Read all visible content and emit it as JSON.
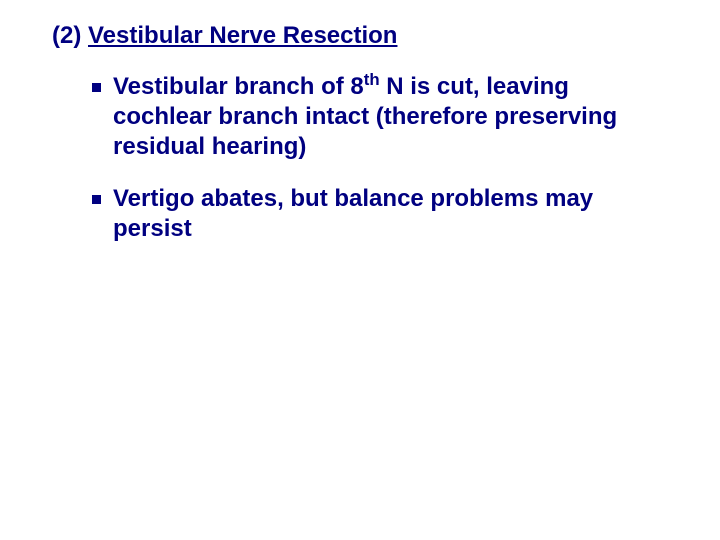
{
  "colors": {
    "text": "#000080",
    "background": "#ffffff",
    "bullet": "#000080"
  },
  "typography": {
    "font_family": "Arial",
    "heading_fontsize_pt": 18,
    "body_fontsize_pt": 18,
    "font_weight": "bold",
    "line_height": 1.25
  },
  "heading": {
    "prefix": "(2) ",
    "title": "Vestibular Nerve Resection"
  },
  "bullets": [
    {
      "pre": "Vestibular branch of 8",
      "sup": "th",
      "post": " N is cut, leaving cochlear branch intact (therefore preserving residual hearing)"
    },
    {
      "pre": "Vertigo abates, but balance problems may persist",
      "sup": "",
      "post": ""
    }
  ]
}
